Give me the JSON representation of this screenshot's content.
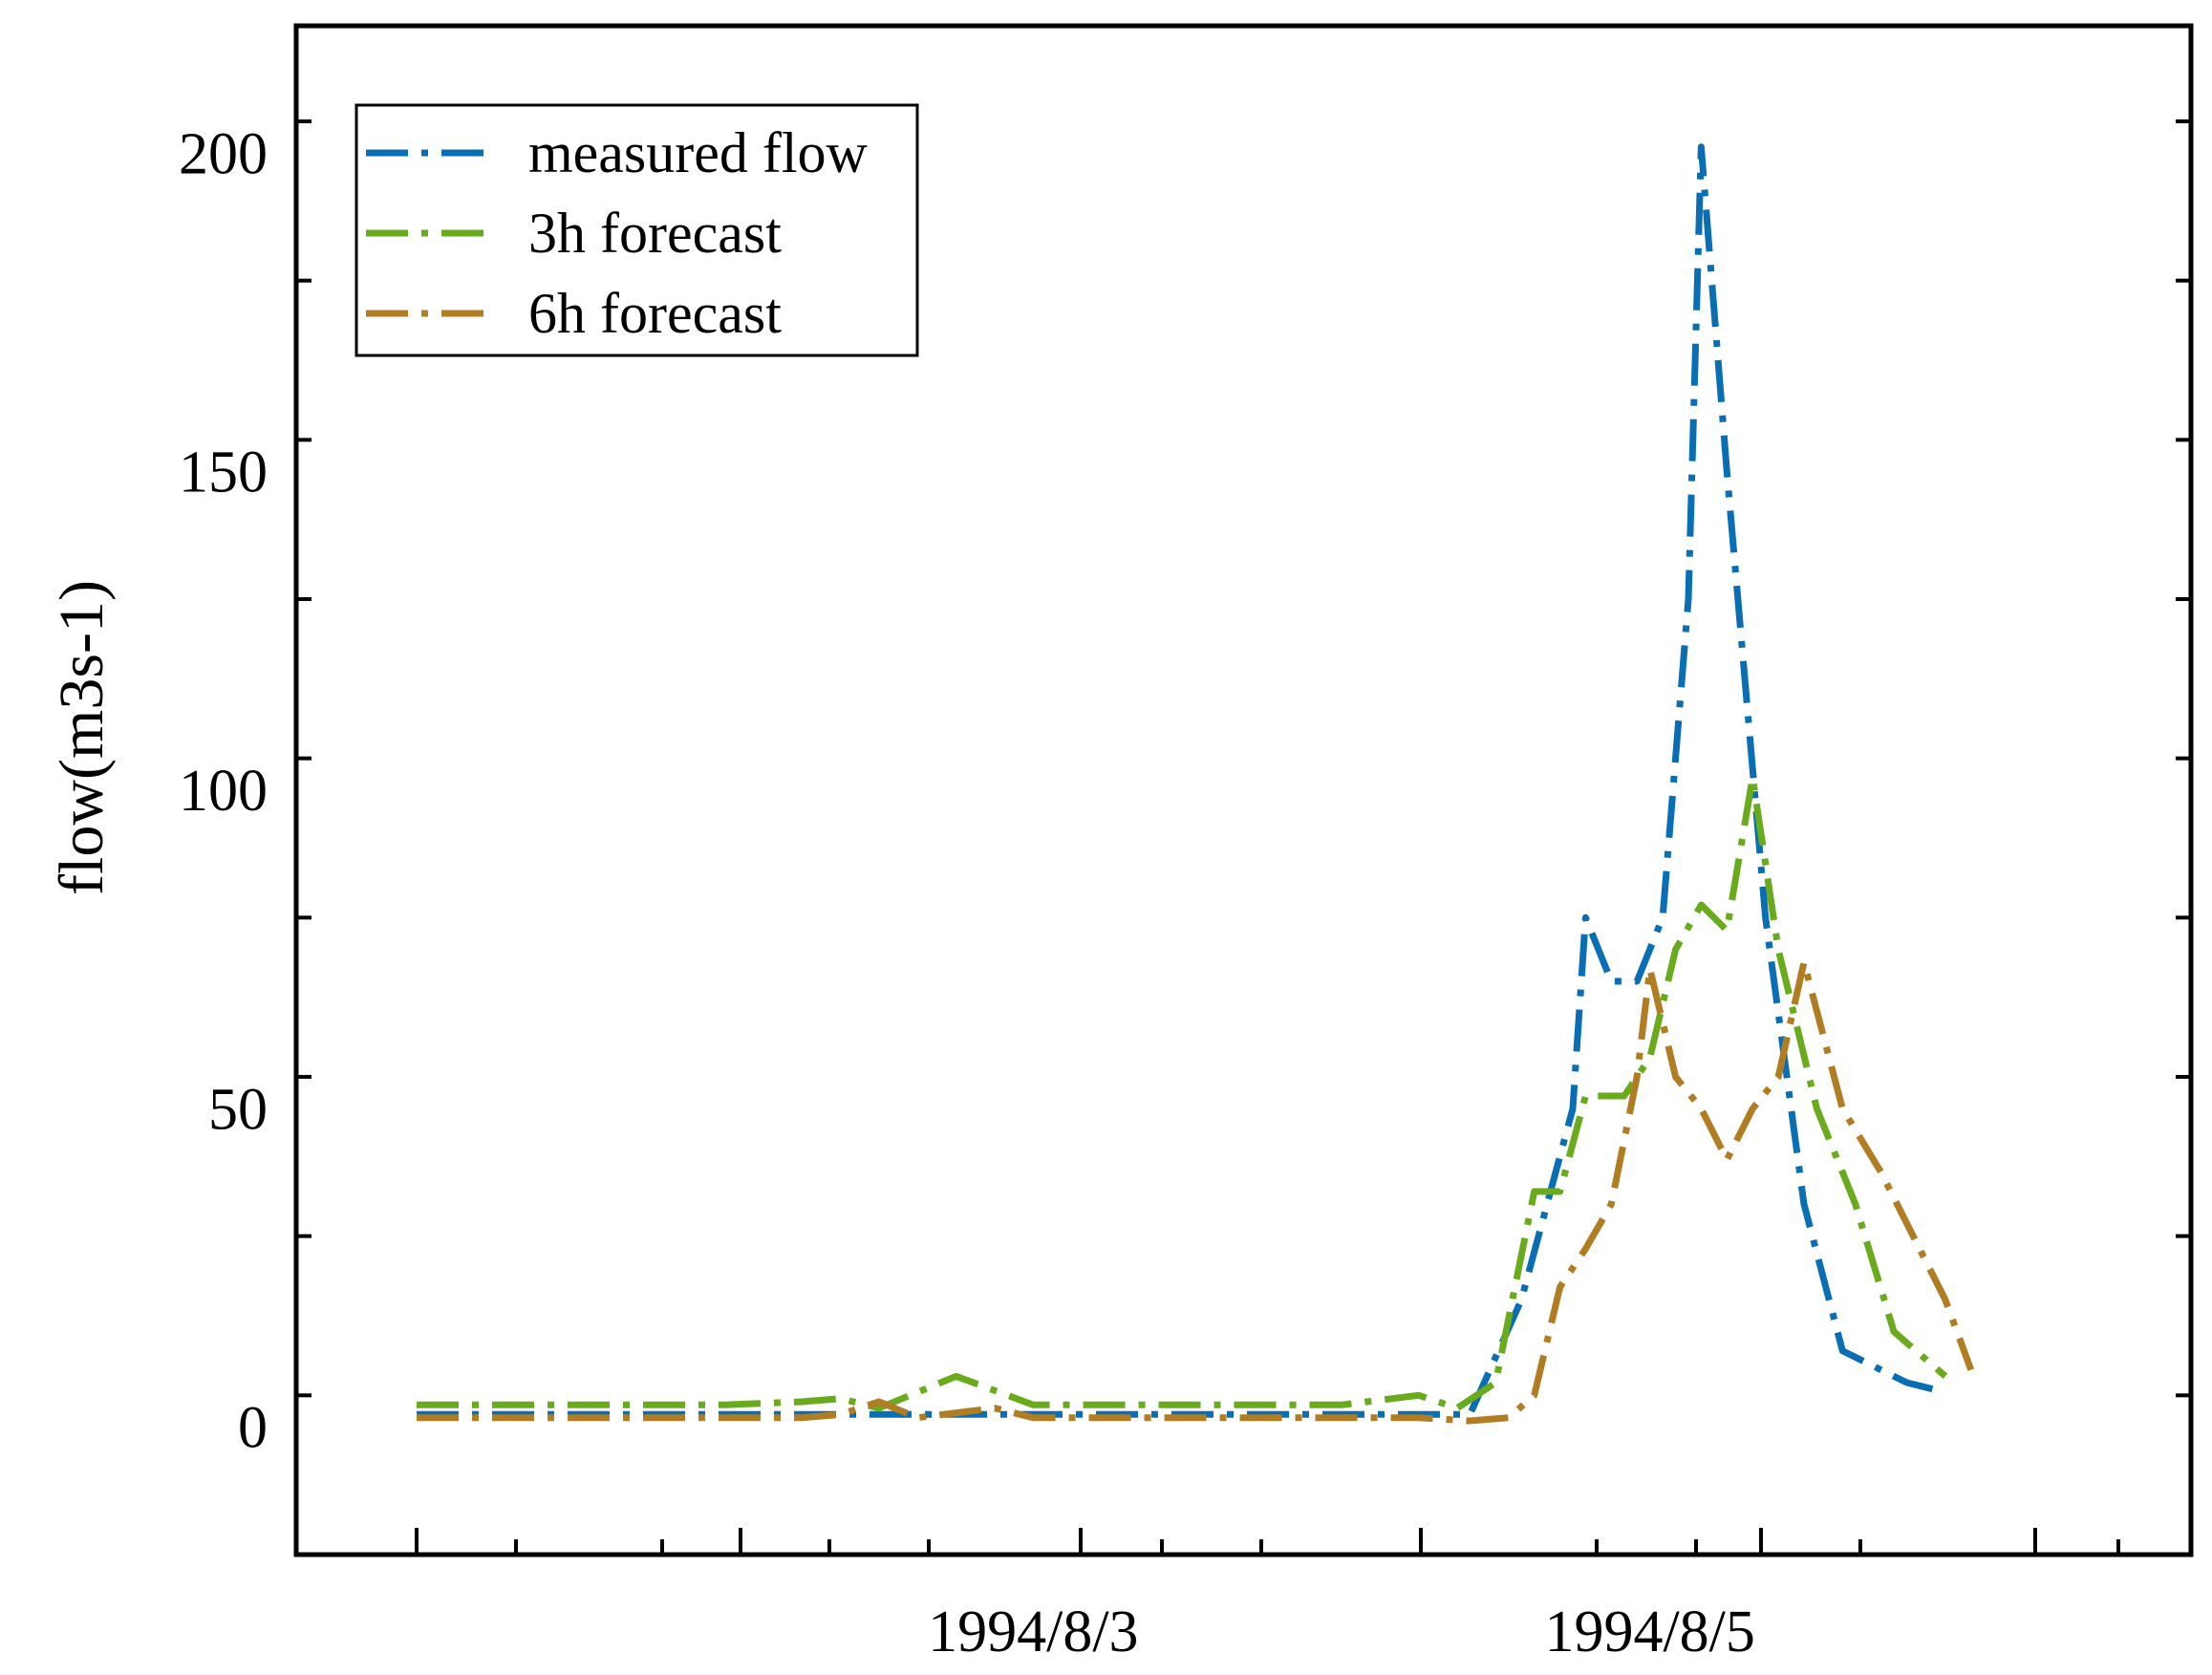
{
  "chart_data": {
    "type": "line",
    "title": "",
    "xlabel": "",
    "ylabel": "flow(m3s-1)",
    "ylim": [
      -20,
      220
    ],
    "yticks": [
      0,
      50,
      100,
      150,
      200
    ],
    "xlim": [
      "1994/8/1 00:00",
      "1994/8/6 06:00"
    ],
    "xtick_labels": [
      "1994/8/3",
      "1994/8/5"
    ],
    "xtick_values": [
      "1994/8/3 00:00",
      "1994/8/5 00:00"
    ],
    "grid": false,
    "legend_position": "top-left",
    "series": [
      {
        "name": "measured flow",
        "color": "#0a6eb4",
        "x": [
          "1994/8/1 00:00",
          "1994/8/1 12:00",
          "1994/8/2 00:00",
          "1994/8/2 12:00",
          "1994/8/3 00:00",
          "1994/8/3 12:00",
          "1994/8/4 00:00",
          "1994/8/4 06:00",
          "1994/8/4 10:00",
          "1994/8/4 14:00",
          "1994/8/4 18:00",
          "1994/8/4 19:00",
          "1994/8/4 21:00",
          "1994/8/4 23:00",
          "1994/8/5 01:00",
          "1994/8/5 03:00",
          "1994/8/5 04:00",
          "1994/8/5 06:00",
          "1994/8/5 09:00",
          "1994/8/5 12:00",
          "1994/8/5 15:00",
          "1994/8/5 18:00",
          "1994/8/5 20:00",
          "1994/8/5 22:00"
        ],
        "y": [
          2,
          2,
          2,
          2,
          2,
          2,
          2,
          2,
          2,
          20,
          50,
          80,
          70,
          70,
          80,
          130,
          201,
          150,
          80,
          35,
          12,
          9,
          7,
          6
        ]
      },
      {
        "name": "3h forecast",
        "color": "#6aab1e",
        "x": [
          "1994/8/1 00:00",
          "1994/8/1 12:00",
          "1994/8/2 00:00",
          "1994/8/2 06:00",
          "1994/8/2 09:00",
          "1994/8/2 12:00",
          "1994/8/2 18:00",
          "1994/8/3 00:00",
          "1994/8/3 12:00",
          "1994/8/4 00:00",
          "1994/8/4 06:00",
          "1994/8/4 09:00",
          "1994/8/4 12:00",
          "1994/8/4 15:00",
          "1994/8/4 17:00",
          "1994/8/4 19:00",
          "1994/8/4 22:00",
          "1994/8/5 00:00",
          "1994/8/5 02:00",
          "1994/8/5 04:00",
          "1994/8/5 06:00",
          "1994/8/5 08:00",
          "1994/8/5 10:00",
          "1994/8/5 13:00",
          "1994/8/5 16:00",
          "1994/8/5 19:00",
          "1994/8/5 23:00"
        ],
        "y": [
          3.5,
          3.5,
          3.5,
          4,
          4.5,
          3,
          8,
          3.5,
          3.5,
          3.5,
          5,
          3,
          7,
          37,
          37,
          52,
          52,
          58,
          75,
          82,
          78,
          102,
          75,
          50,
          35,
          15,
          8
        ]
      },
      {
        "name": "6h forecast",
        "color": "#b07d22",
        "x": [
          "1994/8/1 00:00",
          "1994/8/1 12:00",
          "1994/8/2 00:00",
          "1994/8/2 06:00",
          "1994/8/2 09:00",
          "1994/8/2 12:00",
          "1994/8/2 15:00",
          "1994/8/2 21:00",
          "1994/8/3 00:00",
          "1994/8/3 12:00",
          "1994/8/4 00:00",
          "1994/8/4 06:00",
          "1994/8/4 10:00",
          "1994/8/4 13:00",
          "1994/8/4 15:00",
          "1994/8/4 17:00",
          "1994/8/4 19:00",
          "1994/8/4 21:00",
          "1994/8/4 23:00",
          "1994/8/5 00:00",
          "1994/8/5 02:00",
          "1994/8/5 04:00",
          "1994/8/5 06:00",
          "1994/8/5 08:00",
          "1994/8/5 10:00",
          "1994/8/5 12:00",
          "1994/8/5 15:00",
          "1994/8/5 18:00",
          "1994/8/5 21:00",
          "1994/8/5 23:00",
          "1994/8/6 01:00"
        ],
        "y": [
          1.5,
          1.5,
          1.5,
          1.5,
          2,
          4,
          1.5,
          3,
          1.5,
          1.5,
          1.5,
          1.5,
          1,
          1.5,
          5,
          22,
          28,
          35,
          55,
          72,
          55,
          50,
          42,
          50,
          55,
          73,
          50,
          40,
          28,
          20,
          9
        ]
      }
    ]
  }
}
